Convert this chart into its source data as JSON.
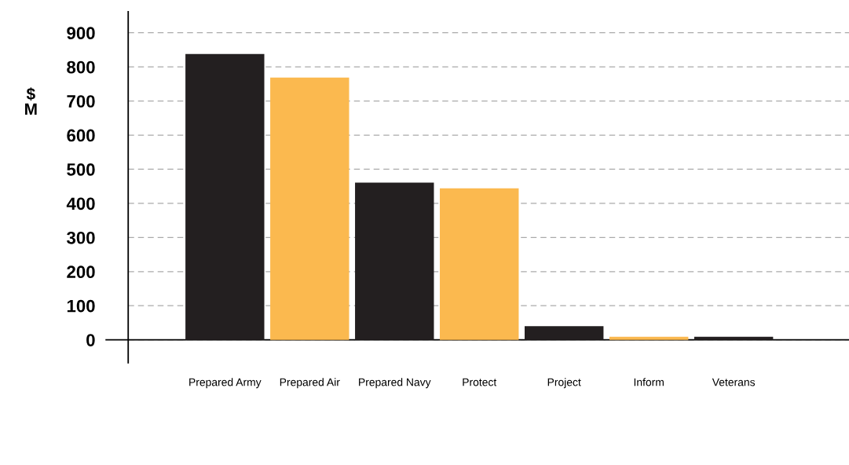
{
  "chart_data": {
    "type": "bar",
    "ylabel": "$\nM",
    "categories": [
      "Prepared Army",
      "Prepared Air",
      "Prepared Navy",
      "Protect",
      "Project",
      "Inform",
      "Veterans"
    ],
    "values": [
      838,
      769,
      461,
      444,
      40,
      9,
      9
    ],
    "colors": [
      "#231f20",
      "#fbb94f",
      "#231f20",
      "#fbb94f",
      "#231f20",
      "#fbb94f",
      "#231f20"
    ],
    "ylim": [
      -67,
      962
    ],
    "yticks": [
      0,
      100,
      200,
      300,
      400,
      500,
      600,
      700,
      800,
      900
    ],
    "grid": "y"
  }
}
